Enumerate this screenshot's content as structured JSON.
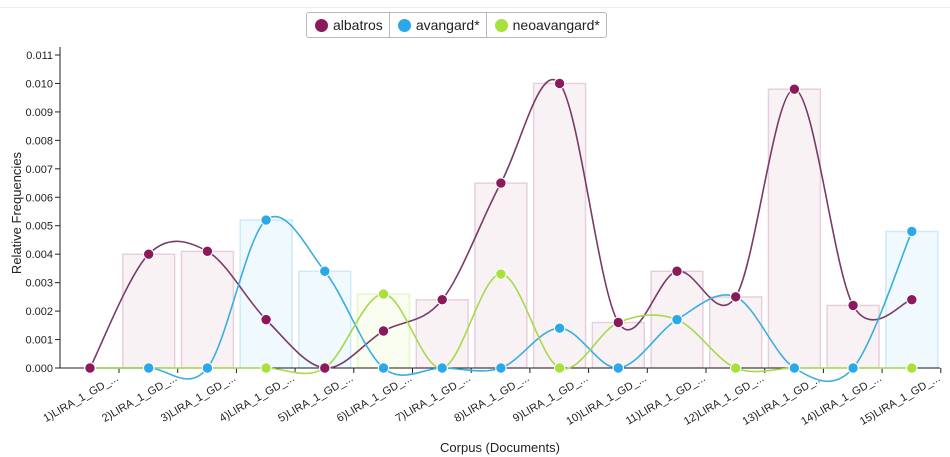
{
  "chart_data": {
    "type": "line",
    "xlabel": "Corpus (Documents)",
    "ylabel": "Relative Frequencies",
    "ylim": [
      0,
      0.011
    ],
    "yticks": [
      "0.000",
      "0.001",
      "0.002",
      "0.003",
      "0.004",
      "0.005",
      "0.006",
      "0.007",
      "0.008",
      "0.009",
      "0.010",
      "0.011"
    ],
    "categories": [
      "1)LIRA_1_GD_...",
      "2)LIRA_1_GD_...",
      "3)LIRA_1_GD_...",
      "4)LIRA_1_GD_...",
      "5)LIRA_1_GD_...",
      "6)LIRA_1_GD_...",
      "7)LIRA_1_GD_...",
      "8)LIRA_1_GD_...",
      "9)LIRA_1_GD_...",
      "10)LIRA_1_GD_...",
      "11)LIRA_1_GD_...",
      "12)LIRA_1_GD_...",
      "13)LIRA_1_GD_...",
      "14)LIRA_1_GD_...",
      "15)LIRA_1_GD_..."
    ],
    "series": [
      {
        "name": "albatros",
        "color": "#8b1a5c",
        "values": [
          0,
          0.004,
          0.0041,
          0.0017,
          0,
          0.0013,
          0.0024,
          0.0065,
          0.01,
          0.0016,
          0.0034,
          0.0025,
          0.0098,
          0.0022,
          0.0024
        ]
      },
      {
        "name": "avangard*",
        "color": "#2aa8e8",
        "values": [
          0,
          0,
          0,
          0.0052,
          0.0034,
          0,
          0,
          0,
          0.0014,
          0,
          0.0017,
          0.0025,
          0,
          0,
          0.0048
        ]
      },
      {
        "name": "neoavangard*",
        "color": "#a8e03c",
        "values": [
          0,
          0,
          0,
          0,
          0,
          0.0026,
          0,
          0.0033,
          0,
          0.0016,
          0.0017,
          0,
          0,
          0,
          0
        ]
      }
    ],
    "legend_position": "top-center"
  }
}
